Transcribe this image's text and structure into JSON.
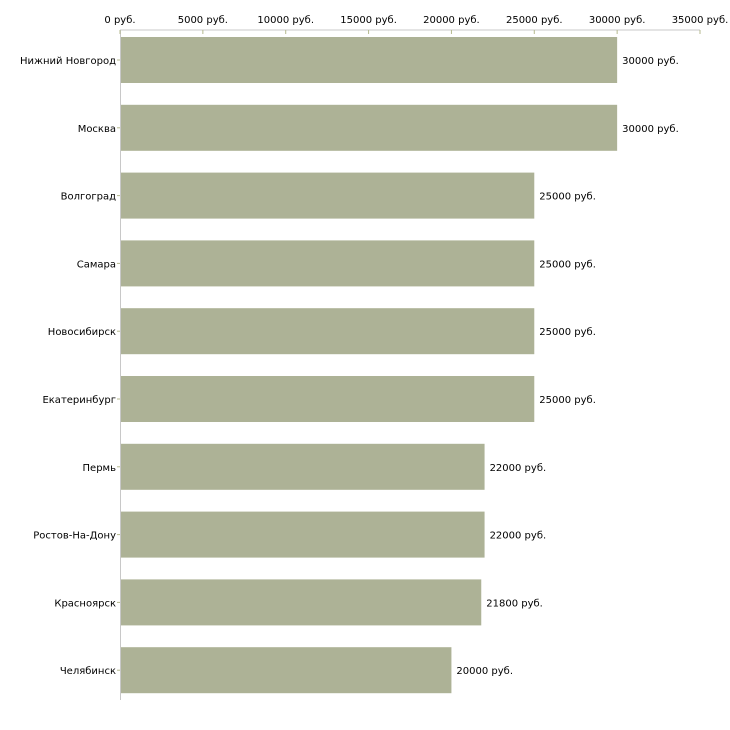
{
  "colors": {
    "bar": "#adb296",
    "axis": "#c8c8c8",
    "tick": "#b5b98f"
  },
  "chart_data": {
    "type": "bar",
    "orientation": "horizontal",
    "title": "",
    "xlabel": "",
    "ylabel": "",
    "xlim": [
      0,
      35000
    ],
    "unit": "руб.",
    "x_ticks": [
      0,
      5000,
      10000,
      15000,
      20000,
      25000,
      30000,
      35000
    ],
    "x_tick_labels": [
      "0 руб.",
      "5000 руб.",
      "10000 руб.",
      "15000 руб.",
      "20000 руб.",
      "25000 руб.",
      "30000 руб.",
      "35000 руб."
    ],
    "categories": [
      "Нижний Новгород",
      "Москва",
      "Волгоград",
      "Самара",
      "Новосибирск",
      "Екатеринбург",
      "Пермь",
      "Ростов-На-Дону",
      "Красноярск",
      "Челябинск"
    ],
    "values": [
      30000,
      30000,
      25000,
      25000,
      25000,
      25000,
      22000,
      22000,
      21800,
      20000
    ],
    "value_labels": [
      "30000 руб.",
      "30000 руб.",
      "25000 руб.",
      "25000 руб.",
      "25000 руб.",
      "25000 руб.",
      "22000 руб.",
      "22000 руб.",
      "21800 руб.",
      "20000 руб."
    ],
    "grid": false,
    "legend": "none"
  }
}
